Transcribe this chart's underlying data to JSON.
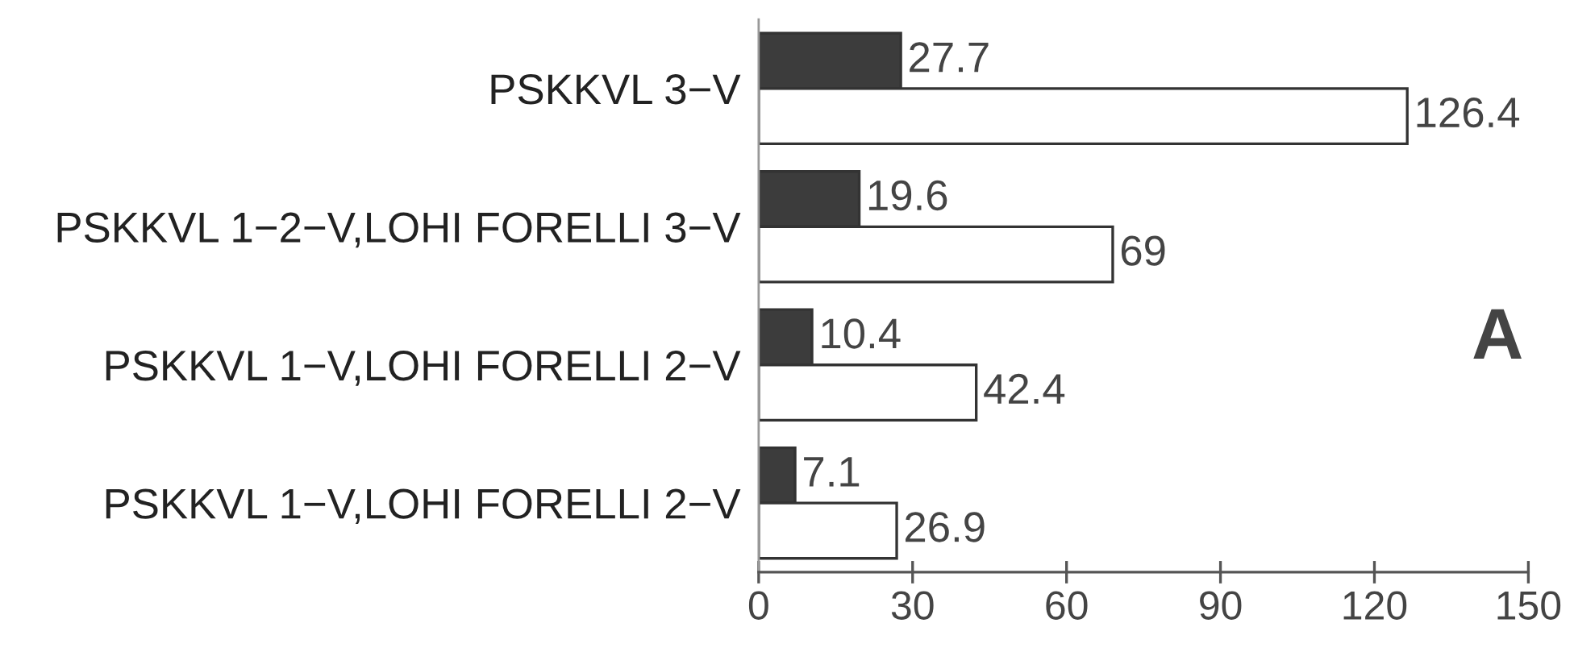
{
  "chart_data": {
    "type": "bar",
    "orientation": "horizontal",
    "categories": [
      "PSKKVL 3−V",
      "PSKKVL 1−2−V,LOHI FORELLI 3−V",
      "PSKKVL 1−V,LOHI FORELLI 2−V",
      "PSKKVL 1−V,LOHI FORELLI 2−V"
    ],
    "series": [
      {
        "color": "#3c3c3c",
        "values": [
          27.7,
          19.6,
          10.4,
          7.1
        ]
      },
      {
        "color": "#ffffff",
        "values": [
          126.4,
          69,
          42.4,
          26.9
        ]
      }
    ],
    "xlim": [
      0,
      150
    ],
    "xticks": [
      0,
      30,
      60,
      90,
      120,
      150
    ],
    "data_labels": true,
    "grid": false,
    "legend": false,
    "annotations": [
      "A"
    ]
  }
}
